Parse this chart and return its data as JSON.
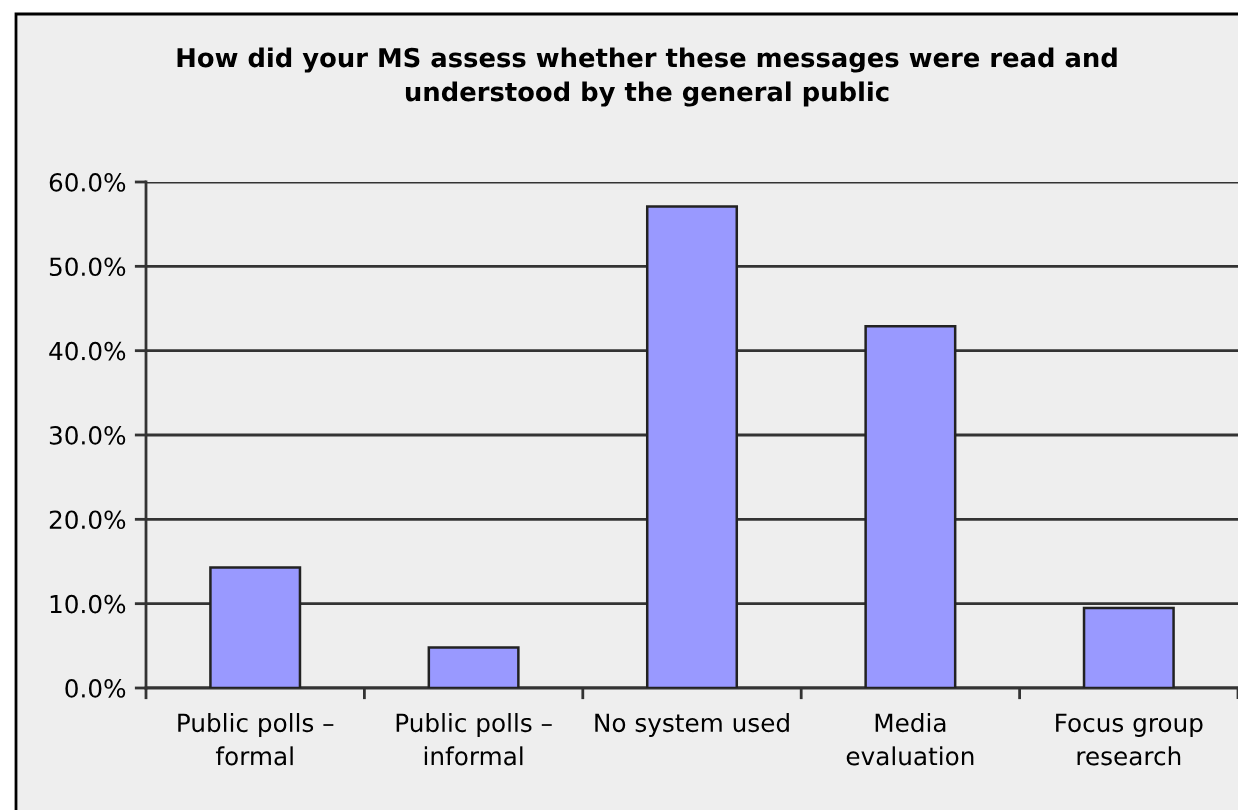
{
  "chart_data": {
    "type": "bar",
    "title": "How did your MS assess whether these messages were read and\nunderstood by the general public",
    "categories": [
      "Public polls –\nformal",
      "Public polls –\ninformal",
      "No system used",
      "Media\nevaluation",
      "Focus group\nresearch"
    ],
    "values": [
      14.3,
      4.8,
      57.1,
      42.9,
      9.5
    ],
    "color": "#9999ff",
    "ylim": [
      0,
      60
    ],
    "yticks": [
      {
        "value": 0,
        "label": "0.0%"
      },
      {
        "value": 10,
        "label": "10.0%"
      },
      {
        "value": 20,
        "label": "20.0%"
      },
      {
        "value": 30,
        "label": "30.0%"
      },
      {
        "value": 40,
        "label": "40.0%"
      },
      {
        "value": 50,
        "label": "50.0%"
      },
      {
        "value": 60,
        "label": "60.0%"
      }
    ],
    "grid": "y",
    "legend": false
  }
}
